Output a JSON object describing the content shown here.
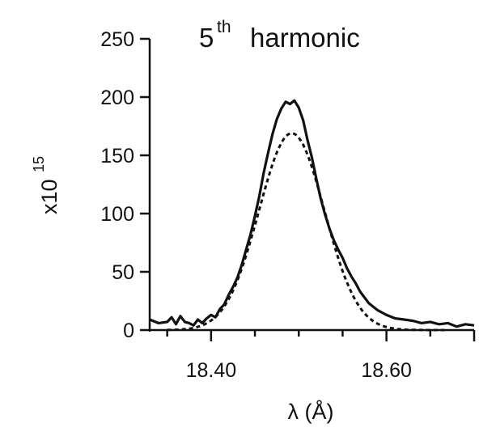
{
  "chart_data": {
    "type": "line",
    "title_base": "5",
    "title_sup": "th",
    "title_rest": "harmonic",
    "xlabel": "λ (Å)",
    "ylabel_base": "x10",
    "ylabel_exp": "15",
    "xlim": [
      18.33,
      18.7
    ],
    "ylim": [
      0,
      250
    ],
    "xticks_major": [
      18.4,
      18.6
    ],
    "xtick_labels": [
      "18.40",
      "18.60"
    ],
    "xticks_minor": [
      18.35,
      18.45,
      18.5,
      18.55,
      18.65
    ],
    "yticks": [
      0,
      50,
      100,
      150,
      200,
      250
    ],
    "ytick_labels": [
      "0",
      "50",
      "100",
      "150",
      "200",
      "250"
    ],
    "grid": false,
    "series": [
      {
        "style": "solid",
        "points": [
          [
            18.33,
            9
          ],
          [
            18.34,
            6
          ],
          [
            18.35,
            7
          ],
          [
            18.355,
            11
          ],
          [
            18.36,
            5
          ],
          [
            18.365,
            12
          ],
          [
            18.37,
            7
          ],
          [
            18.375,
            6
          ],
          [
            18.38,
            4
          ],
          [
            18.385,
            9
          ],
          [
            18.39,
            6
          ],
          [
            18.395,
            10
          ],
          [
            18.4,
            13
          ],
          [
            18.405,
            11
          ],
          [
            18.41,
            18
          ],
          [
            18.415,
            22
          ],
          [
            18.42,
            30
          ],
          [
            18.425,
            37
          ],
          [
            18.43,
            45
          ],
          [
            18.435,
            56
          ],
          [
            18.44,
            69
          ],
          [
            18.445,
            82
          ],
          [
            18.45,
            98
          ],
          [
            18.455,
            115
          ],
          [
            18.46,
            135
          ],
          [
            18.465,
            152
          ],
          [
            18.47,
            168
          ],
          [
            18.475,
            181
          ],
          [
            18.48,
            190
          ],
          [
            18.485,
            196
          ],
          [
            18.49,
            194
          ],
          [
            18.495,
            197
          ],
          [
            18.5,
            191
          ],
          [
            18.505,
            180
          ],
          [
            18.51,
            163
          ],
          [
            18.515,
            148
          ],
          [
            18.52,
            130
          ],
          [
            18.525,
            113
          ],
          [
            18.53,
            99
          ],
          [
            18.535,
            87
          ],
          [
            18.54,
            77
          ],
          [
            18.545,
            69
          ],
          [
            18.55,
            62
          ],
          [
            18.555,
            53
          ],
          [
            18.56,
            46
          ],
          [
            18.565,
            40
          ],
          [
            18.57,
            33
          ],
          [
            18.575,
            28
          ],
          [
            18.58,
            23
          ],
          [
            18.585,
            20
          ],
          [
            18.59,
            17
          ],
          [
            18.595,
            15
          ],
          [
            18.6,
            13
          ],
          [
            18.61,
            10
          ],
          [
            18.62,
            9
          ],
          [
            18.63,
            8
          ],
          [
            18.64,
            6
          ],
          [
            18.65,
            7
          ],
          [
            18.66,
            5
          ],
          [
            18.67,
            6
          ],
          [
            18.68,
            3
          ],
          [
            18.69,
            5
          ],
          [
            18.7,
            4
          ]
        ]
      },
      {
        "style": "dashed",
        "peak": 169,
        "center": 18.492,
        "fwhm": 0.088,
        "x_range": [
          18.35,
          18.67
        ]
      }
    ]
  }
}
